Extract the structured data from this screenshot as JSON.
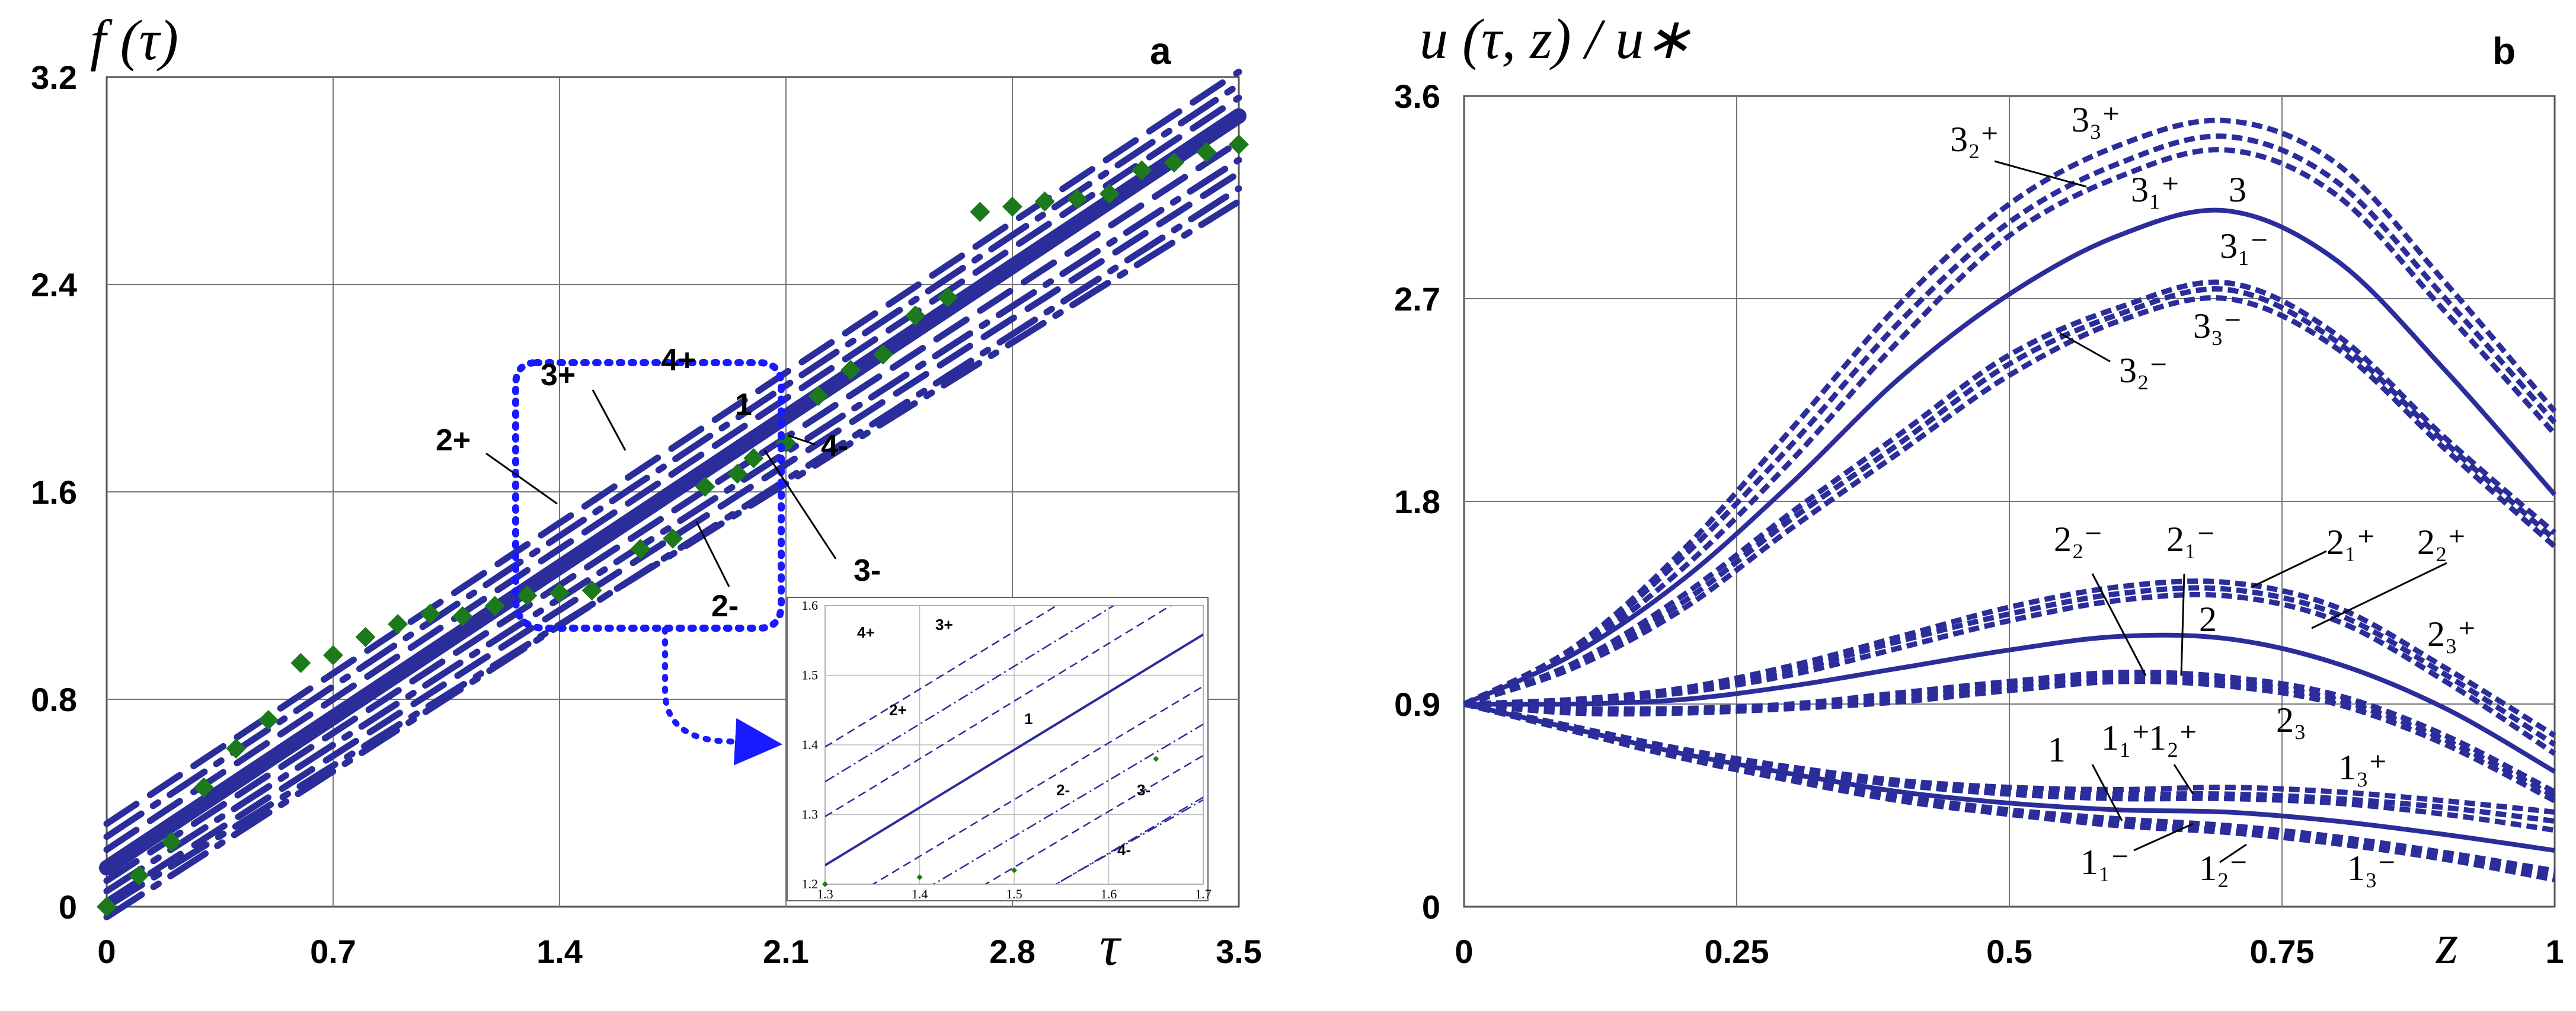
{
  "chart_data": [
    {
      "panel": "a",
      "type": "line",
      "ylabel": "f (τ)",
      "xlabel": "τ",
      "xlim": [
        0,
        3.5
      ],
      "ylim": [
        0,
        3.2
      ],
      "xticks": [
        "0",
        "0.7",
        "1.4",
        "2.1",
        "2.8",
        "3.5"
      ],
      "yticks": [
        "0",
        "0.8",
        "1.6",
        "2.4",
        "3.2"
      ],
      "grid": true,
      "colors": {
        "line": "#2b2d9a",
        "points": "#1c7a1c",
        "box": "#1a1aff"
      },
      "series": [
        {
          "name": "1",
          "x": [
            0,
            3.5
          ],
          "values": [
            0.15,
            3.05
          ]
        },
        {
          "name": "2+",
          "x": [
            0,
            3.5
          ],
          "values": [
            0.22,
            3.12
          ]
        },
        {
          "name": "3+",
          "x": [
            0,
            3.5
          ],
          "values": [
            0.27,
            3.17
          ]
        },
        {
          "name": "4+",
          "x": [
            0,
            3.5
          ],
          "values": [
            0.32,
            3.22
          ]
        },
        {
          "name": "2-",
          "x": [
            0,
            3.5
          ],
          "values": [
            0.06,
            2.88
          ]
        },
        {
          "name": "3-",
          "x": [
            0,
            3.5
          ],
          "values": [
            0.02,
            2.83
          ]
        },
        {
          "name": "4-",
          "x": [
            0,
            3.5
          ],
          "values": [
            -0.04,
            2.77
          ]
        },
        {
          "name": "",
          "x": [
            0,
            3.5
          ],
          "values": [
            0.1,
            2.95
          ]
        },
        {
          "name": "",
          "x": [
            0,
            3.5
          ],
          "values": [
            0.0,
            2.72
          ]
        }
      ],
      "points": {
        "x": [
          0,
          0.1,
          0.2,
          0.3,
          0.4,
          0.5,
          0.6,
          0.7,
          0.8,
          0.9,
          1.0,
          1.1,
          1.2,
          1.3,
          1.4,
          1.5,
          1.65,
          1.75,
          1.85,
          1.95,
          2.0,
          2.1,
          2.2,
          2.3,
          2.4,
          2.5,
          2.6,
          2.7,
          2.8,
          2.9,
          3.0,
          3.1,
          3.2,
          3.3,
          3.4,
          3.5
        ],
        "values": [
          0.0,
          0.12,
          0.25,
          0.46,
          0.61,
          0.72,
          0.94,
          0.97,
          1.04,
          1.09,
          1.13,
          1.12,
          1.16,
          1.2,
          1.21,
          1.22,
          1.38,
          1.42,
          1.62,
          1.67,
          1.73,
          1.79,
          1.97,
          2.07,
          2.13,
          2.28,
          2.35,
          2.68,
          2.7,
          2.72,
          2.73,
          2.75,
          2.84,
          2.87,
          2.91,
          2.94
        ]
      },
      "labels": {
        "l1": "1",
        "l2p": "2+",
        "l3p": "3+",
        "l4p": "4+",
        "l2m": "2-",
        "l3m": "3-",
        "l4m": "4-"
      },
      "inset": {
        "xlim": [
          1.3,
          1.7
        ],
        "ylim": [
          1.2,
          1.6
        ],
        "xticks": [
          "1.3",
          "1.4",
          "1.5",
          "1.6",
          "1.7"
        ],
        "yticks": [
          "1.2",
          "1.3",
          "1.4",
          "1.5",
          "1.6"
        ],
        "labels": {
          "l1": "1",
          "l2p": "2+",
          "l3p": "3+",
          "l4p": "4+",
          "l2m": "2-",
          "l3m": "3-",
          "l4m": "4-"
        }
      }
    },
    {
      "panel": "b",
      "type": "line",
      "ylabel": "u (τ, z) / u∗",
      "xlabel": "z",
      "xlim": [
        0,
        1
      ],
      "ylim": [
        0,
        3.6
      ],
      "xticks": [
        "0",
        "0.25",
        "0.5",
        "0.75",
        "1"
      ],
      "yticks": [
        "0",
        "0.9",
        "1.8",
        "2.7",
        "3.6"
      ],
      "grid": true,
      "colors": {
        "line": "#2b2d9a"
      },
      "x": [
        0,
        0.1,
        0.2,
        0.3,
        0.4,
        0.5,
        0.6,
        0.7,
        0.8,
        0.9,
        1.0
      ],
      "series": [
        {
          "name": "3",
          "values": [
            0.9,
            1.12,
            1.45,
            1.88,
            2.35,
            2.72,
            2.98,
            3.09,
            2.87,
            2.38,
            1.83
          ]
        },
        {
          "name": "3₁⁺",
          "values": [
            0.9,
            1.14,
            1.55,
            2.05,
            2.6,
            3.04,
            3.3,
            3.42,
            3.22,
            2.7,
            2.15
          ]
        },
        {
          "name": "3₂⁺",
          "values": [
            0.9,
            1.15,
            1.58,
            2.12,
            2.68,
            3.12,
            3.38,
            3.49,
            3.3,
            2.77,
            2.2
          ]
        },
        {
          "name": "3₃⁺",
          "values": [
            0.9,
            1.13,
            1.5,
            1.98,
            2.52,
            2.98,
            3.24,
            3.36,
            3.16,
            2.64,
            2.1
          ]
        },
        {
          "name": "3₁⁻",
          "values": [
            0.9,
            1.08,
            1.38,
            1.75,
            2.1,
            2.45,
            2.66,
            2.77,
            2.54,
            2.08,
            1.66
          ]
        },
        {
          "name": "3₂⁻",
          "values": [
            0.9,
            1.06,
            1.32,
            1.68,
            2.02,
            2.36,
            2.6,
            2.7,
            2.48,
            2.03,
            1.6
          ]
        },
        {
          "name": "3₃⁻",
          "values": [
            0.9,
            1.07,
            1.35,
            1.72,
            2.06,
            2.41,
            2.63,
            2.74,
            2.51,
            2.06,
            1.63
          ]
        },
        {
          "name": "2",
          "values": [
            0.9,
            0.9,
            0.92,
            0.98,
            1.06,
            1.14,
            1.2,
            1.19,
            1.08,
            0.88,
            0.6
          ]
        },
        {
          "name": "2₁⁺",
          "values": [
            0.9,
            0.92,
            0.97,
            1.07,
            1.2,
            1.33,
            1.42,
            1.44,
            1.33,
            1.06,
            0.76
          ]
        },
        {
          "name": "2₂⁺",
          "values": [
            0.9,
            0.92,
            0.96,
            1.05,
            1.18,
            1.3,
            1.39,
            1.41,
            1.3,
            1.03,
            0.72
          ]
        },
        {
          "name": "2₃⁺",
          "values": [
            0.9,
            0.91,
            0.95,
            1.03,
            1.15,
            1.27,
            1.36,
            1.38,
            1.27,
            1.0,
            0.68
          ]
        },
        {
          "name": "2₁⁻",
          "values": [
            0.9,
            0.87,
            0.87,
            0.89,
            0.93,
            0.98,
            1.02,
            1.0,
            0.92,
            0.74,
            0.49
          ]
        },
        {
          "name": "2₂⁻",
          "values": [
            0.9,
            0.88,
            0.88,
            0.9,
            0.95,
            1.0,
            1.04,
            1.02,
            0.94,
            0.76,
            0.51
          ]
        },
        {
          "name": "2₃",
          "values": [
            0.9,
            0.86,
            0.86,
            0.88,
            0.91,
            0.96,
            1.0,
            0.98,
            0.9,
            0.72,
            0.47
          ]
        },
        {
          "name": "1",
          "values": [
            0.9,
            0.79,
            0.68,
            0.59,
            0.51,
            0.46,
            0.43,
            0.42,
            0.38,
            0.32,
            0.25
          ]
        },
        {
          "name": "1₁⁺",
          "values": [
            0.9,
            0.8,
            0.7,
            0.62,
            0.56,
            0.53,
            0.52,
            0.53,
            0.51,
            0.47,
            0.42
          ]
        },
        {
          "name": "1₂⁺",
          "values": [
            0.9,
            0.8,
            0.69,
            0.61,
            0.55,
            0.51,
            0.5,
            0.5,
            0.48,
            0.44,
            0.38
          ]
        },
        {
          "name": "1₃⁺",
          "values": [
            0.9,
            0.79,
            0.69,
            0.6,
            0.54,
            0.5,
            0.48,
            0.48,
            0.46,
            0.41,
            0.34
          ]
        },
        {
          "name": "1₁⁻",
          "values": [
            0.9,
            0.78,
            0.66,
            0.56,
            0.47,
            0.41,
            0.36,
            0.33,
            0.28,
            0.21,
            0.12
          ]
        },
        {
          "name": "1₂⁻",
          "values": [
            0.9,
            0.78,
            0.66,
            0.57,
            0.48,
            0.42,
            0.37,
            0.34,
            0.29,
            0.22,
            0.14
          ]
        },
        {
          "name": "1₃⁻",
          "values": [
            0.9,
            0.78,
            0.67,
            0.57,
            0.49,
            0.43,
            0.39,
            0.36,
            0.31,
            0.24,
            0.16
          ]
        }
      ]
    }
  ]
}
